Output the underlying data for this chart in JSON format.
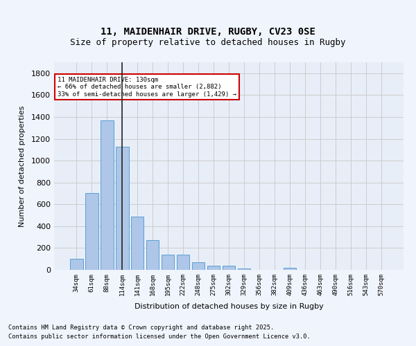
{
  "title1": "11, MAIDENHAIR DRIVE, RUGBY, CV23 0SE",
  "title2": "Size of property relative to detached houses in Rugby",
  "xlabel": "Distribution of detached houses by size in Rugby",
  "ylabel": "Number of detached properties",
  "categories": [
    "34sqm",
    "61sqm",
    "88sqm",
    "114sqm",
    "141sqm",
    "168sqm",
    "195sqm",
    "222sqm",
    "248sqm",
    "275sqm",
    "302sqm",
    "329sqm",
    "356sqm",
    "382sqm",
    "409sqm",
    "436sqm",
    "463sqm",
    "490sqm",
    "516sqm",
    "543sqm",
    "570sqm"
  ],
  "values": [
    100,
    700,
    1370,
    1130,
    490,
    270,
    140,
    140,
    70,
    40,
    35,
    15,
    2,
    2,
    20,
    2,
    2,
    2,
    2,
    2,
    2
  ],
  "bar_color": "#aec6e8",
  "bar_edge_color": "#5a9fd4",
  "highlight_index": 3,
  "highlight_line_color": "#222222",
  "annotation_box_color": "#ffffff",
  "annotation_border_color": "#cc0000",
  "annotation_text": "11 MAIDENHAIR DRIVE: 130sqm\n← 66% of detached houses are smaller (2,882)\n33% of semi-detached houses are larger (1,429) →",
  "ylim": [
    0,
    1900
  ],
  "yticks": [
    0,
    200,
    400,
    600,
    800,
    1000,
    1200,
    1400,
    1600,
    1800
  ],
  "grid_color": "#cccccc",
  "bg_color": "#e8eef8",
  "footer1": "Contains HM Land Registry data © Crown copyright and database right 2025.",
  "footer2": "Contains public sector information licensed under the Open Government Licence v3.0."
}
